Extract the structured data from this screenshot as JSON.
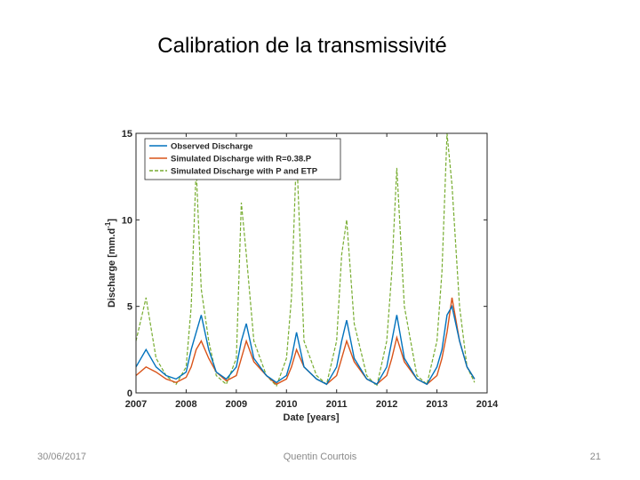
{
  "slide": {
    "title": "Calibration de la transmissivité",
    "footer_date": "30/06/2017",
    "footer_author": "Quentin Courtois",
    "page_number": "21"
  },
  "chart_data": {
    "type": "line",
    "title": "",
    "xlabel": "Date [years]",
    "ylabel": "Discharge [mm.d",
    "ylabel_sup": "-1",
    "ylabel_close": "]",
    "xlim": [
      2007,
      2014
    ],
    "ylim": [
      0,
      15
    ],
    "xticks": [
      "2007",
      "2008",
      "2009",
      "2010",
      "2011",
      "2012",
      "2013",
      "2014"
    ],
    "yticks": [
      "0",
      "5",
      "10",
      "15"
    ],
    "grid": false,
    "legend_position": "top-left",
    "x": [
      2007.0,
      2007.2,
      2007.4,
      2007.6,
      2007.8,
      2008.0,
      2008.1,
      2008.2,
      2008.3,
      2008.45,
      2008.6,
      2008.8,
      2009.0,
      2009.1,
      2009.2,
      2009.35,
      2009.6,
      2009.8,
      2010.0,
      2010.1,
      2010.2,
      2010.35,
      2010.6,
      2010.8,
      2011.0,
      2011.1,
      2011.2,
      2011.35,
      2011.6,
      2011.8,
      2012.0,
      2012.1,
      2012.2,
      2012.35,
      2012.6,
      2012.8,
      2013.0,
      2013.1,
      2013.2,
      2013.3,
      2013.45,
      2013.6,
      2013.75
    ],
    "series": [
      {
        "name": "Observed Discharge",
        "color": "#0072bd",
        "values": [
          1.5,
          2.5,
          1.5,
          1.0,
          0.8,
          1.2,
          2.5,
          3.5,
          4.5,
          2.5,
          1.2,
          0.8,
          1.5,
          3.0,
          4.0,
          2.0,
          1.0,
          0.6,
          1.0,
          2.0,
          3.5,
          1.5,
          0.8,
          0.5,
          1.5,
          3.0,
          4.2,
          2.0,
          0.8,
          0.5,
          1.5,
          3.0,
          4.5,
          2.0,
          0.8,
          0.5,
          1.5,
          2.5,
          4.5,
          5.0,
          3.0,
          1.5,
          0.8
        ]
      },
      {
        "name": "Simulated Discharge with R=0.38.P",
        "color": "#d95319",
        "values": [
          1.0,
          1.5,
          1.2,
          0.8,
          0.6,
          0.9,
          1.5,
          2.5,
          3.0,
          2.0,
          1.2,
          0.7,
          1.0,
          2.0,
          3.0,
          1.8,
          1.0,
          0.5,
          0.8,
          1.5,
          2.5,
          1.5,
          0.8,
          0.5,
          1.0,
          2.0,
          3.0,
          1.8,
          0.8,
          0.5,
          1.0,
          2.0,
          3.2,
          1.8,
          0.8,
          0.5,
          1.0,
          2.0,
          3.5,
          5.5,
          3.0,
          1.5,
          0.8
        ]
      },
      {
        "name": "Simulated Discharge with P and ETP",
        "color": "#77ac30",
        "values": [
          3.0,
          5.5,
          2.0,
          1.0,
          0.5,
          1.5,
          5.0,
          13.0,
          6.0,
          3.0,
          1.0,
          0.5,
          2.0,
          11.0,
          8.0,
          3.0,
          1.0,
          0.4,
          2.0,
          5.5,
          14.0,
          3.0,
          1.0,
          0.5,
          3.0,
          8.0,
          10.0,
          4.0,
          1.0,
          0.4,
          3.0,
          7.0,
          13.0,
          5.0,
          1.0,
          0.5,
          3.0,
          7.0,
          15.0,
          12.0,
          5.0,
          1.5,
          0.6
        ]
      }
    ]
  }
}
